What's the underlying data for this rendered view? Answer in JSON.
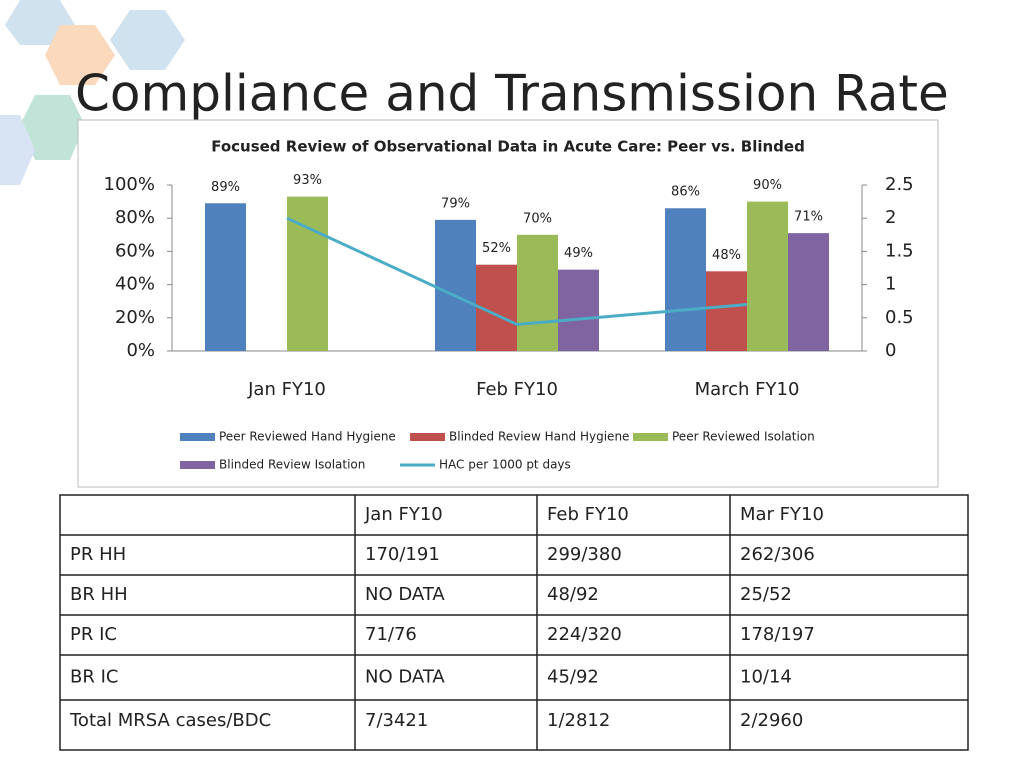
{
  "title": "Compliance and Transmission Rate",
  "chart_data": {
    "type": "bar",
    "title": "Focused Review of Observational Data in Acute Care: Peer vs. Blinded",
    "categories": [
      "Jan FY10",
      "Feb FY10",
      "March FY10"
    ],
    "series": [
      {
        "name": "Peer Reviewed Hand Hygiene",
        "color": "#4f81bd",
        "values": [
          89,
          79,
          86
        ],
        "value_labels": [
          "89%",
          "79%",
          "86%"
        ]
      },
      {
        "name": "Blinded Review Hand Hygiene",
        "color": "#c0504d",
        "values": [
          null,
          52,
          48
        ],
        "value_labels": [
          null,
          "52%",
          "48%"
        ]
      },
      {
        "name": "Peer Reviewed Isolation",
        "color": "#9bbb59",
        "values": [
          93,
          70,
          90
        ],
        "value_labels": [
          "93%",
          "70%",
          "90%"
        ]
      },
      {
        "name": "Blinded Review Isolation",
        "color": "#8064a2",
        "values": [
          null,
          49,
          71
        ],
        "value_labels": [
          null,
          "49%",
          "71%"
        ]
      },
      {
        "name": "HAC per 1000 pt days",
        "color": "#4bacc6",
        "type": "line",
        "axis": "y2",
        "values": [
          2.0,
          0.4,
          0.7
        ]
      }
    ],
    "ylim": [
      0,
      100
    ],
    "yticks": [
      {
        "value": 0,
        "label": "0%"
      },
      {
        "value": 20,
        "label": "20%"
      },
      {
        "value": 40,
        "label": "40%"
      },
      {
        "value": 60,
        "label": "60%"
      },
      {
        "value": 80,
        "label": "80%"
      },
      {
        "value": 100,
        "label": "100%"
      }
    ],
    "y2lim": [
      0,
      2.5
    ],
    "y2ticks": [
      0,
      0.5,
      1,
      1.5,
      2,
      2.5
    ],
    "grid": false,
    "legend": "bottom"
  },
  "table": {
    "header": [
      "Jan FY10",
      "Feb FY10",
      "Mar FY10"
    ],
    "rows": [
      [
        "PR HH",
        "170/191",
        "299/380",
        "262/306"
      ],
      [
        "BR HH",
        "NO DATA",
        "48/92",
        "25/52"
      ],
      [
        "PR IC",
        "71/76",
        "224/320",
        "178/197"
      ],
      [
        "BR IC",
        "NO DATA",
        "45/92",
        "10/14"
      ],
      [
        "Total MRSA cases/BDC",
        "7/3421",
        "1/2812",
        "2/2960"
      ]
    ]
  }
}
